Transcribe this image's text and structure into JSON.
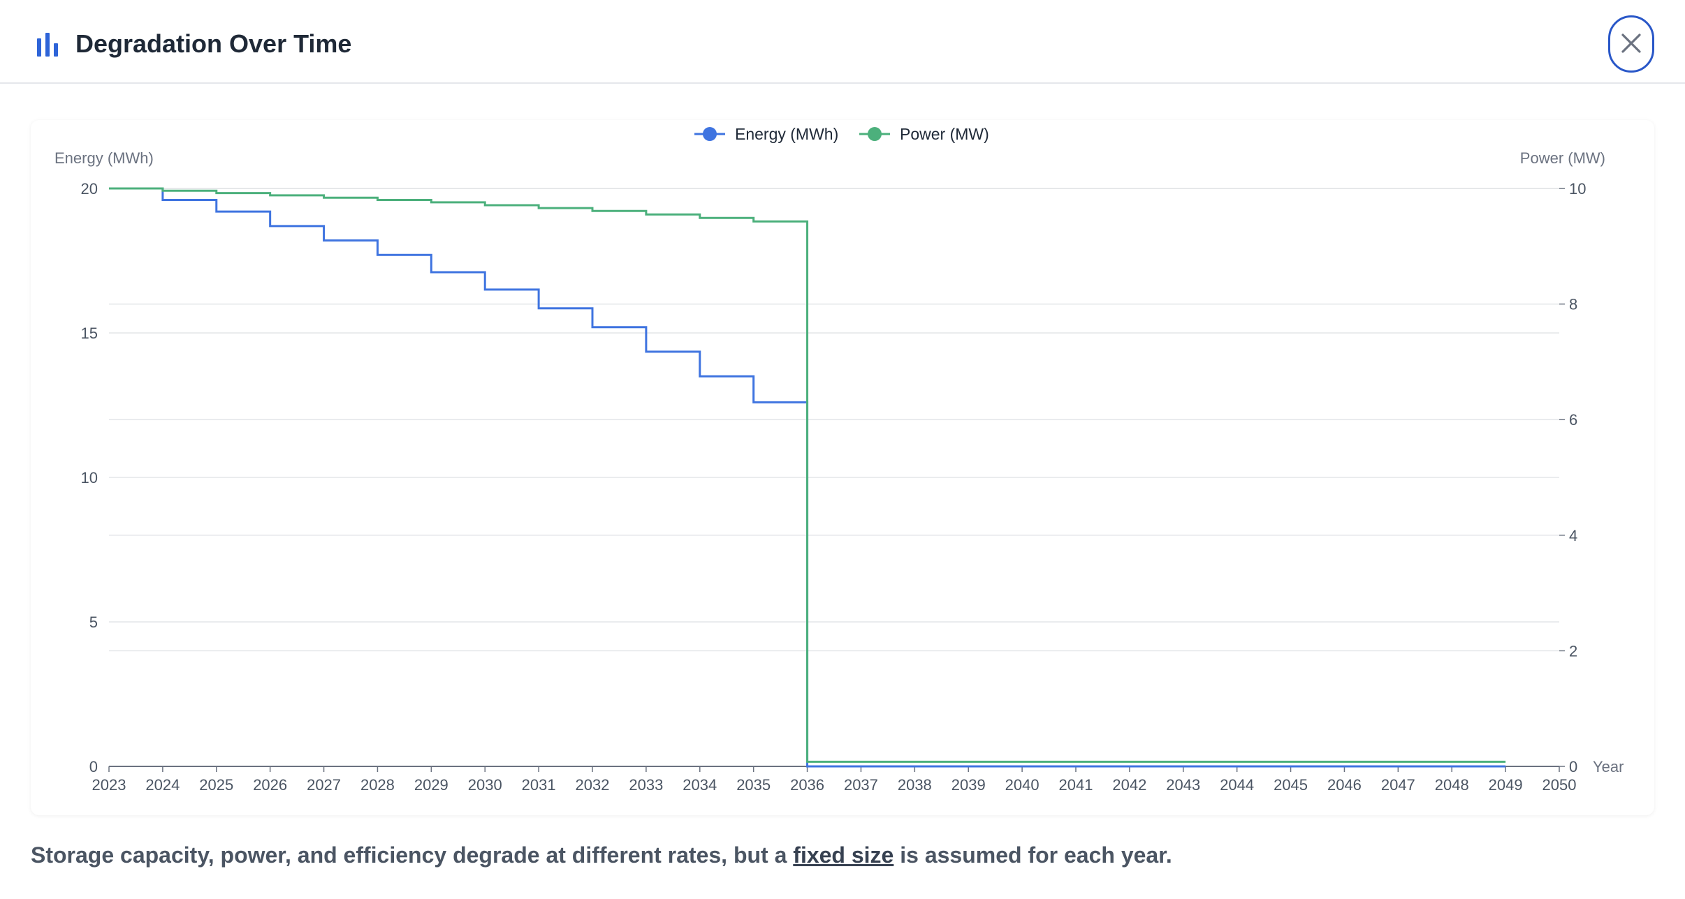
{
  "header": {
    "title": "Degradation Over Time",
    "icon": "bar-chart-icon",
    "close_icon": "close-icon"
  },
  "caption": {
    "before": "Storage capacity, power, and efficiency degrade at different rates, but a ",
    "link": "fixed size",
    "after": " is assumed for each year."
  },
  "colors": {
    "energy": "#3f74e0",
    "power": "#4cb07c",
    "accent": "#2957c8"
  },
  "chart_data": {
    "type": "line",
    "step": "end",
    "title": "",
    "xlabel": "Year",
    "ylabel_left": "Energy (MWh)",
    "ylabel_right": "Power (MW)",
    "xlim": [
      2023,
      2050
    ],
    "x_ticks": [
      2023,
      2024,
      2025,
      2026,
      2027,
      2028,
      2029,
      2030,
      2031,
      2032,
      2033,
      2034,
      2035,
      2036,
      2037,
      2038,
      2039,
      2040,
      2041,
      2042,
      2043,
      2044,
      2045,
      2046,
      2047,
      2048,
      2049,
      2050
    ],
    "ylim_left": [
      0,
      20
    ],
    "y_ticks_left": [
      0,
      5,
      10,
      15,
      20
    ],
    "ylim_right": [
      0,
      10
    ],
    "y_ticks_right": [
      0,
      2,
      4,
      6,
      8,
      10
    ],
    "legend": "top-center",
    "grid": true,
    "x": [
      2023,
      2024,
      2025,
      2026,
      2027,
      2028,
      2029,
      2030,
      2031,
      2032,
      2033,
      2034,
      2035,
      2036,
      2037,
      2038,
      2039,
      2040,
      2041,
      2042,
      2043,
      2044,
      2045,
      2046,
      2047,
      2048,
      2049
    ],
    "series": [
      {
        "name": "Energy (MWh)",
        "axis": "left",
        "color": "#3f74e0",
        "values": [
          20,
          19.6,
          19.2,
          18.7,
          18.2,
          17.7,
          17.1,
          16.5,
          15.85,
          15.2,
          14.35,
          13.5,
          12.6,
          0,
          0,
          0,
          0,
          0,
          0,
          0,
          0,
          0,
          0,
          0,
          0,
          0,
          0
        ]
      },
      {
        "name": "Power (MW)",
        "axis": "right",
        "color": "#4cb07c",
        "values": [
          10,
          9.96,
          9.92,
          9.88,
          9.84,
          9.8,
          9.76,
          9.71,
          9.66,
          9.61,
          9.55,
          9.49,
          9.43,
          0.08,
          0.08,
          0.08,
          0.08,
          0.08,
          0.08,
          0.08,
          0.08,
          0.08,
          0.08,
          0.08,
          0.08,
          0.08,
          0.08
        ]
      }
    ]
  }
}
